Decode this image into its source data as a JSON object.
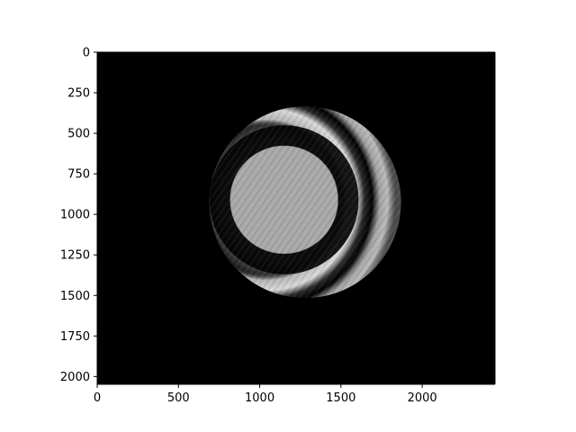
{
  "chart_data": {
    "type": "image",
    "colormap": "gray",
    "background_color": "#000000",
    "image_extent": {
      "x": [
        0,
        2448
      ],
      "y": [
        0,
        2048
      ]
    },
    "xlim": [
      0,
      2448
    ],
    "ylim": [
      2048,
      0
    ],
    "y_inverted": true,
    "grid": false,
    "legend": "none",
    "xticks": [
      0,
      500,
      1000,
      1500,
      2000
    ],
    "xtick_labels": [
      "0",
      "500",
      "1000",
      "1500",
      "2000"
    ],
    "yticks": [
      0,
      250,
      500,
      750,
      1000,
      1250,
      1500,
      1750,
      2000
    ],
    "ytick_labels": [
      "0",
      "250",
      "500",
      "750",
      "1000",
      "1250",
      "1500",
      "1750",
      "2000"
    ],
    "title": "",
    "xlabel": "",
    "ylabel": "",
    "features": {
      "aperture": {
        "shape": "circle",
        "center": [
          1280,
          925
        ],
        "radius": 590
      },
      "central_bright_disk": {
        "center": [
          1150,
          910
        ],
        "radius": 330
      },
      "fringes": "concentric bright and dark interference rings, offset toward the right"
    }
  }
}
